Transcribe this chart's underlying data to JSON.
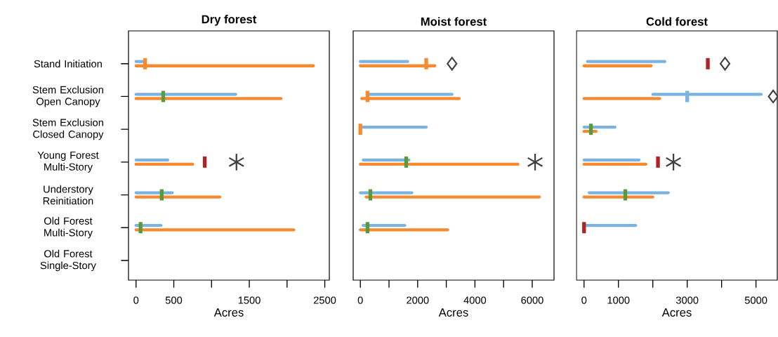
{
  "chart_data": [
    {
      "type": "bar",
      "orientation": "horizontal",
      "title": "Dry forest",
      "xlabel": "Acres",
      "categories": [
        "Stand Initiation",
        "Stem Exclusion Open Canopy",
        "Stem Exclusion Closed Canopy",
        "Young Forest Multi-Story",
        "Understory Reinitiation",
        "Old Forest Multi-Story",
        "Old Forest Single-Story"
      ],
      "xlim": [
        -100,
        2560
      ],
      "xticks": [
        0,
        500,
        {
          "value": 1000,
          "label": null
        },
        1500,
        {
          "value": 2000,
          "label": null
        },
        2500
      ],
      "series": [
        {
          "color": "#7ab3e0",
          "base": [
            0,
            0,
            null,
            0,
            0,
            0,
            null
          ],
          "values": [
            100,
            1320,
            null,
            420,
            480,
            330,
            null
          ]
        },
        {
          "color": "#f58a2f",
          "base": [
            0,
            0,
            null,
            0,
            0,
            0,
            null
          ],
          "values": [
            2350,
            1920,
            null,
            750,
            1110,
            2090,
            null
          ]
        },
        {
          "type": "scatter",
          "values": [
            120,
            360,
            null,
            910,
            340,
            60,
            null
          ],
          "colors": [
            "#f58a2f",
            "#5a9a3c",
            null,
            "#b22222",
            "#5a9a3c",
            "#5a9a3c",
            null
          ]
        },
        {
          "type": "scatter",
          "marker": "star",
          "color": "#404040",
          "values": [
            null,
            null,
            null,
            1330,
            null,
            null,
            null
          ]
        }
      ]
    },
    {
      "type": "bar",
      "orientation": "horizontal",
      "title": "Moist forest",
      "xlabel": "Acres",
      "tick_labels": "x",
      "categories": [
        null,
        null,
        null,
        null,
        null,
        null,
        null
      ],
      "xlim": [
        -250,
        6760
      ],
      "xticks": [
        0,
        {
          "value": 1000,
          "label": null
        },
        2000,
        {
          "value": 3000,
          "label": null
        },
        4000,
        {
          "value": 5000,
          "label": null
        },
        6000
      ],
      "series": [
        {
          "color": "#7ab3e0",
          "base": [
            0,
            250,
            0,
            100,
            0,
            100,
            null
          ],
          "values": [
            1650,
            2950,
            2300,
            1600,
            1800,
            1450,
            null
          ]
        },
        {
          "color": "#f58a2f",
          "base": [
            0,
            50,
            null,
            0,
            200,
            0,
            null
          ],
          "values": [
            2600,
            3400,
            null,
            5500,
            6050,
            3050,
            null
          ]
        },
        {
          "type": "scatter",
          "values": [
            2300,
            250,
            0,
            1600,
            350,
            250,
            null
          ],
          "colors": [
            "#f58a2f",
            "#f58a2f",
            "#f58a2f",
            "#5a9a3c",
            "#5a9a3c",
            "#5a9a3c",
            null
          ]
        },
        {
          "type": "scatter",
          "marker": "diamond",
          "color": "#404040",
          "values": [
            3200,
            null,
            null,
            null,
            null,
            null,
            null
          ]
        },
        {
          "type": "scatter",
          "marker": "star",
          "color": "#404040",
          "values": [
            null,
            null,
            null,
            6100,
            null,
            null,
            null
          ]
        }
      ]
    },
    {
      "type": "bar",
      "orientation": "horizontal",
      "title": "Cold forest",
      "xlabel": "Acres",
      "tick_labels": "x",
      "categories": [
        null,
        null,
        null,
        null,
        null,
        null,
        null
      ],
      "xlim": [
        -220,
        5620
      ],
      "xticks": [
        0,
        1000,
        {
          "value": 2000,
          "label": null
        },
        3000,
        {
          "value": 4000,
          "label": null
        },
        5000
      ],
      "series": [
        {
          "color": "#7ab3e0",
          "base": [
            100,
            2000,
            0,
            0,
            150,
            0,
            null
          ],
          "values": [
            2250,
            3150,
            900,
            1600,
            2300,
            1500,
            null
          ]
        },
        {
          "color": "#f58a2f",
          "base": [
            0,
            0,
            0,
            0,
            0,
            null,
            null
          ],
          "values": [
            1950,
            2200,
            350,
            1800,
            2000,
            null,
            null
          ]
        },
        {
          "type": "scatter",
          "values": [
            3600,
            3000,
            200,
            2150,
            1200,
            0,
            null
          ],
          "colors": [
            "#b22222",
            "#7ab3e0",
            "#5a9a3c",
            "#b22222",
            "#5a9a3c",
            "#b22222",
            null
          ]
        },
        {
          "type": "scatter",
          "marker": "diamond",
          "color": "#404040",
          "values": [
            4100,
            5500,
            null,
            null,
            null,
            null,
            null
          ]
        },
        {
          "type": "scatter",
          "marker": "star",
          "color": "#404040",
          "values": [
            null,
            null,
            null,
            2600,
            null,
            null,
            null
          ]
        }
      ]
    }
  ]
}
